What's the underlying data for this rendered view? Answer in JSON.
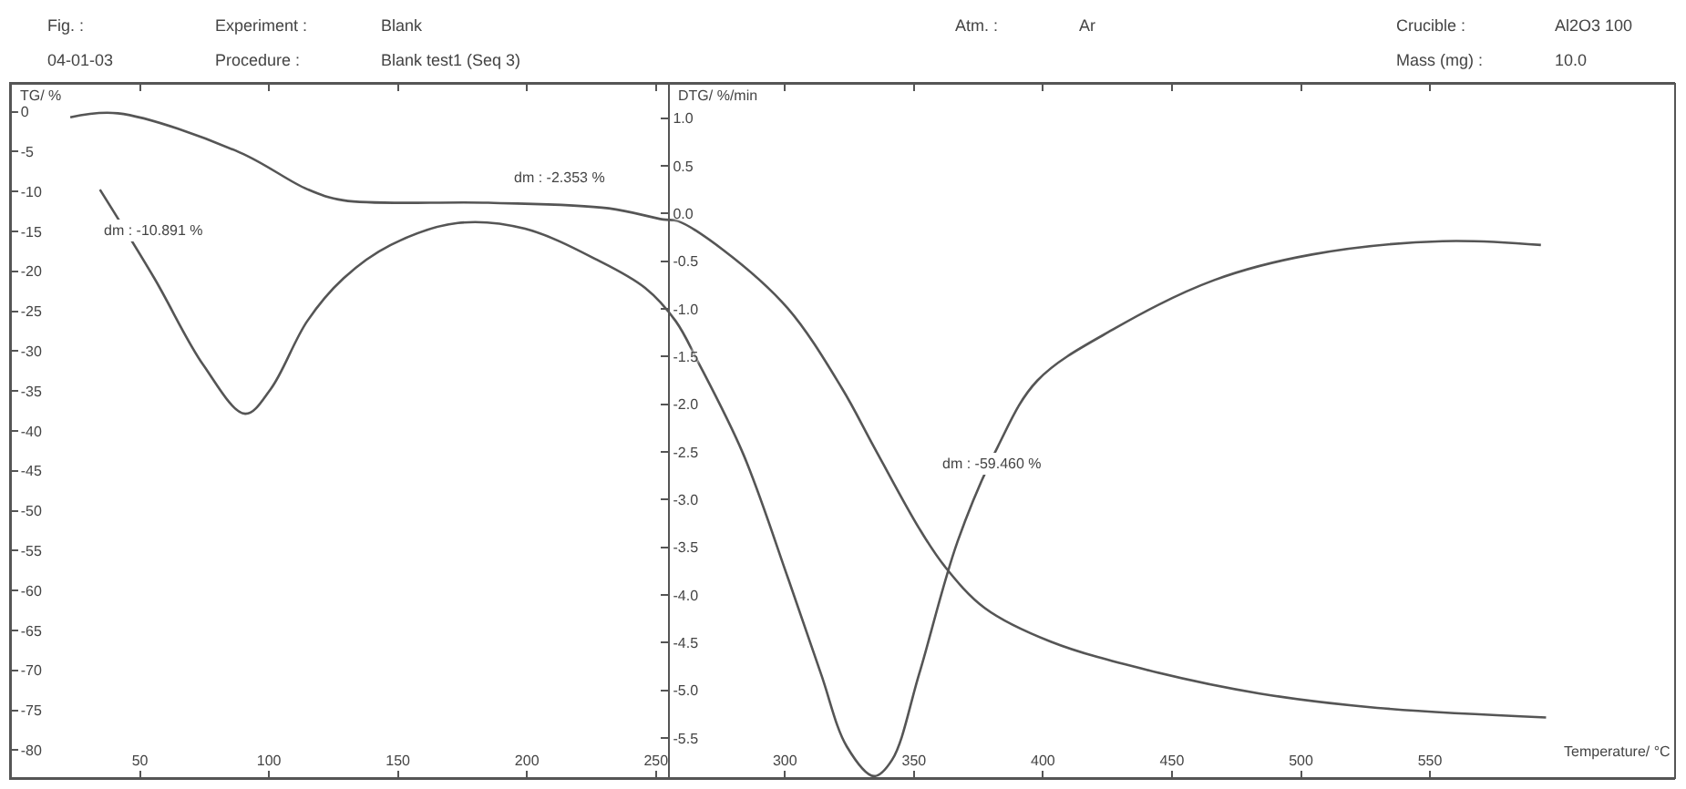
{
  "chart_data": {
    "type": "line",
    "xlabel": "Temperature/ °C",
    "ylabel": "TG/ %",
    "y2label": "DTG/ %/min",
    "annotations": [
      "Fig. :",
      "Experiment :",
      "Blank",
      "Atm. :",
      "Ar",
      "Crucible :",
      "Al2O3 100",
      "04-01-03",
      "Procedure :",
      "Blank test1 (Seq 3)",
      "Mass (mg) :",
      "10.0",
      "dm : -10.891 %",
      "dm : -2.353 %",
      {
        "text": "dm : -59.460 %",
        "x": 380,
        "y": -44
      }
    ],
    "series": [
      {
        "color": "#555555",
        "x": [
          23,
          41.5,
          88.7,
          114.8,
          128.9,
          185,
          231.7,
          252.8,
          258.5,
          276,
          301,
          322,
          334.5,
          352,
          362,
          377.5,
          403,
          441,
          484,
          529.6,
          595
        ],
        "values": [
          -0.7,
          -0.2,
          -5.1,
          -9.7,
          -11.1,
          -11.4,
          -12.1,
          -13.5,
          -13.7,
          -17.3,
          -24.6,
          -34.6,
          -42,
          -52.2,
          -57,
          -62.2,
          -66.4,
          -70,
          -72.9,
          -74.7,
          -75.9
        ]
      },
      {
        "color": "#555555",
        "axis": "y2",
        "x": [
          34.5,
          55.6,
          74.6,
          90.8,
          100.7,
          114.8,
          128.9,
          147.2,
          173.2,
          199.3,
          227.5,
          245.8,
          257.7,
          266.2,
          283.8,
          301.4,
          314,
          324,
          334.5,
          341.5,
          352,
          366.9,
          382.4,
          397.9,
          428.2,
          466.2,
          504.2,
          554.9,
          593
        ],
        "values": [
          0.25,
          -0.68,
          -1.59,
          -2.1,
          -1.84,
          -1.13,
          -0.68,
          -0.33,
          -0.1,
          -0.16,
          -0.49,
          -0.78,
          -1.13,
          -1.55,
          -2.52,
          -3.84,
          -4.83,
          -5.59,
          -5.9,
          -5.73,
          -4.83,
          -3.44,
          -2.45,
          -1.75,
          -1.2,
          -0.7,
          -0.43,
          -0.29,
          -0.33
        ]
      }
    ],
    "xlim": [
      0,
      645
    ],
    "xticks": [
      50,
      100,
      150,
      200,
      250,
      300,
      350,
      400,
      450,
      500,
      550
    ],
    "ylim": [
      -83.5,
      3.5
    ],
    "yticks": [
      0,
      -5,
      -10,
      -15,
      -20,
      -25,
      -30,
      -35,
      -40,
      -45,
      -50,
      -55,
      -60,
      -65,
      -70,
      -75,
      -80
    ],
    "y2lim": [
      -5.92,
      1.36
    ],
    "y2ticks": [
      {
        "value": 1,
        "label": "1.0"
      },
      {
        "value": 0.5,
        "label": "0.5"
      },
      {
        "value": 0,
        "label": "0.0"
      },
      {
        "value": -0.5,
        "label": "-0.5"
      },
      {
        "value": -1,
        "label": "-1.0"
      },
      {
        "value": -1.5,
        "label": "-1.5"
      },
      {
        "value": -2,
        "label": "-2.0"
      },
      {
        "value": -2.5,
        "label": "-2.5"
      },
      {
        "value": -3,
        "label": "-3.0"
      },
      {
        "value": -3.5,
        "label": "-3.5"
      },
      {
        "value": -4,
        "label": "-4.0"
      },
      {
        "value": -4.5,
        "label": "-4.5"
      },
      {
        "value": -5,
        "label": "-5.0"
      },
      {
        "value": -5.5,
        "label": "-5.5"
      }
    ],
    "marker": "none",
    "line_style": "solid"
  }
}
